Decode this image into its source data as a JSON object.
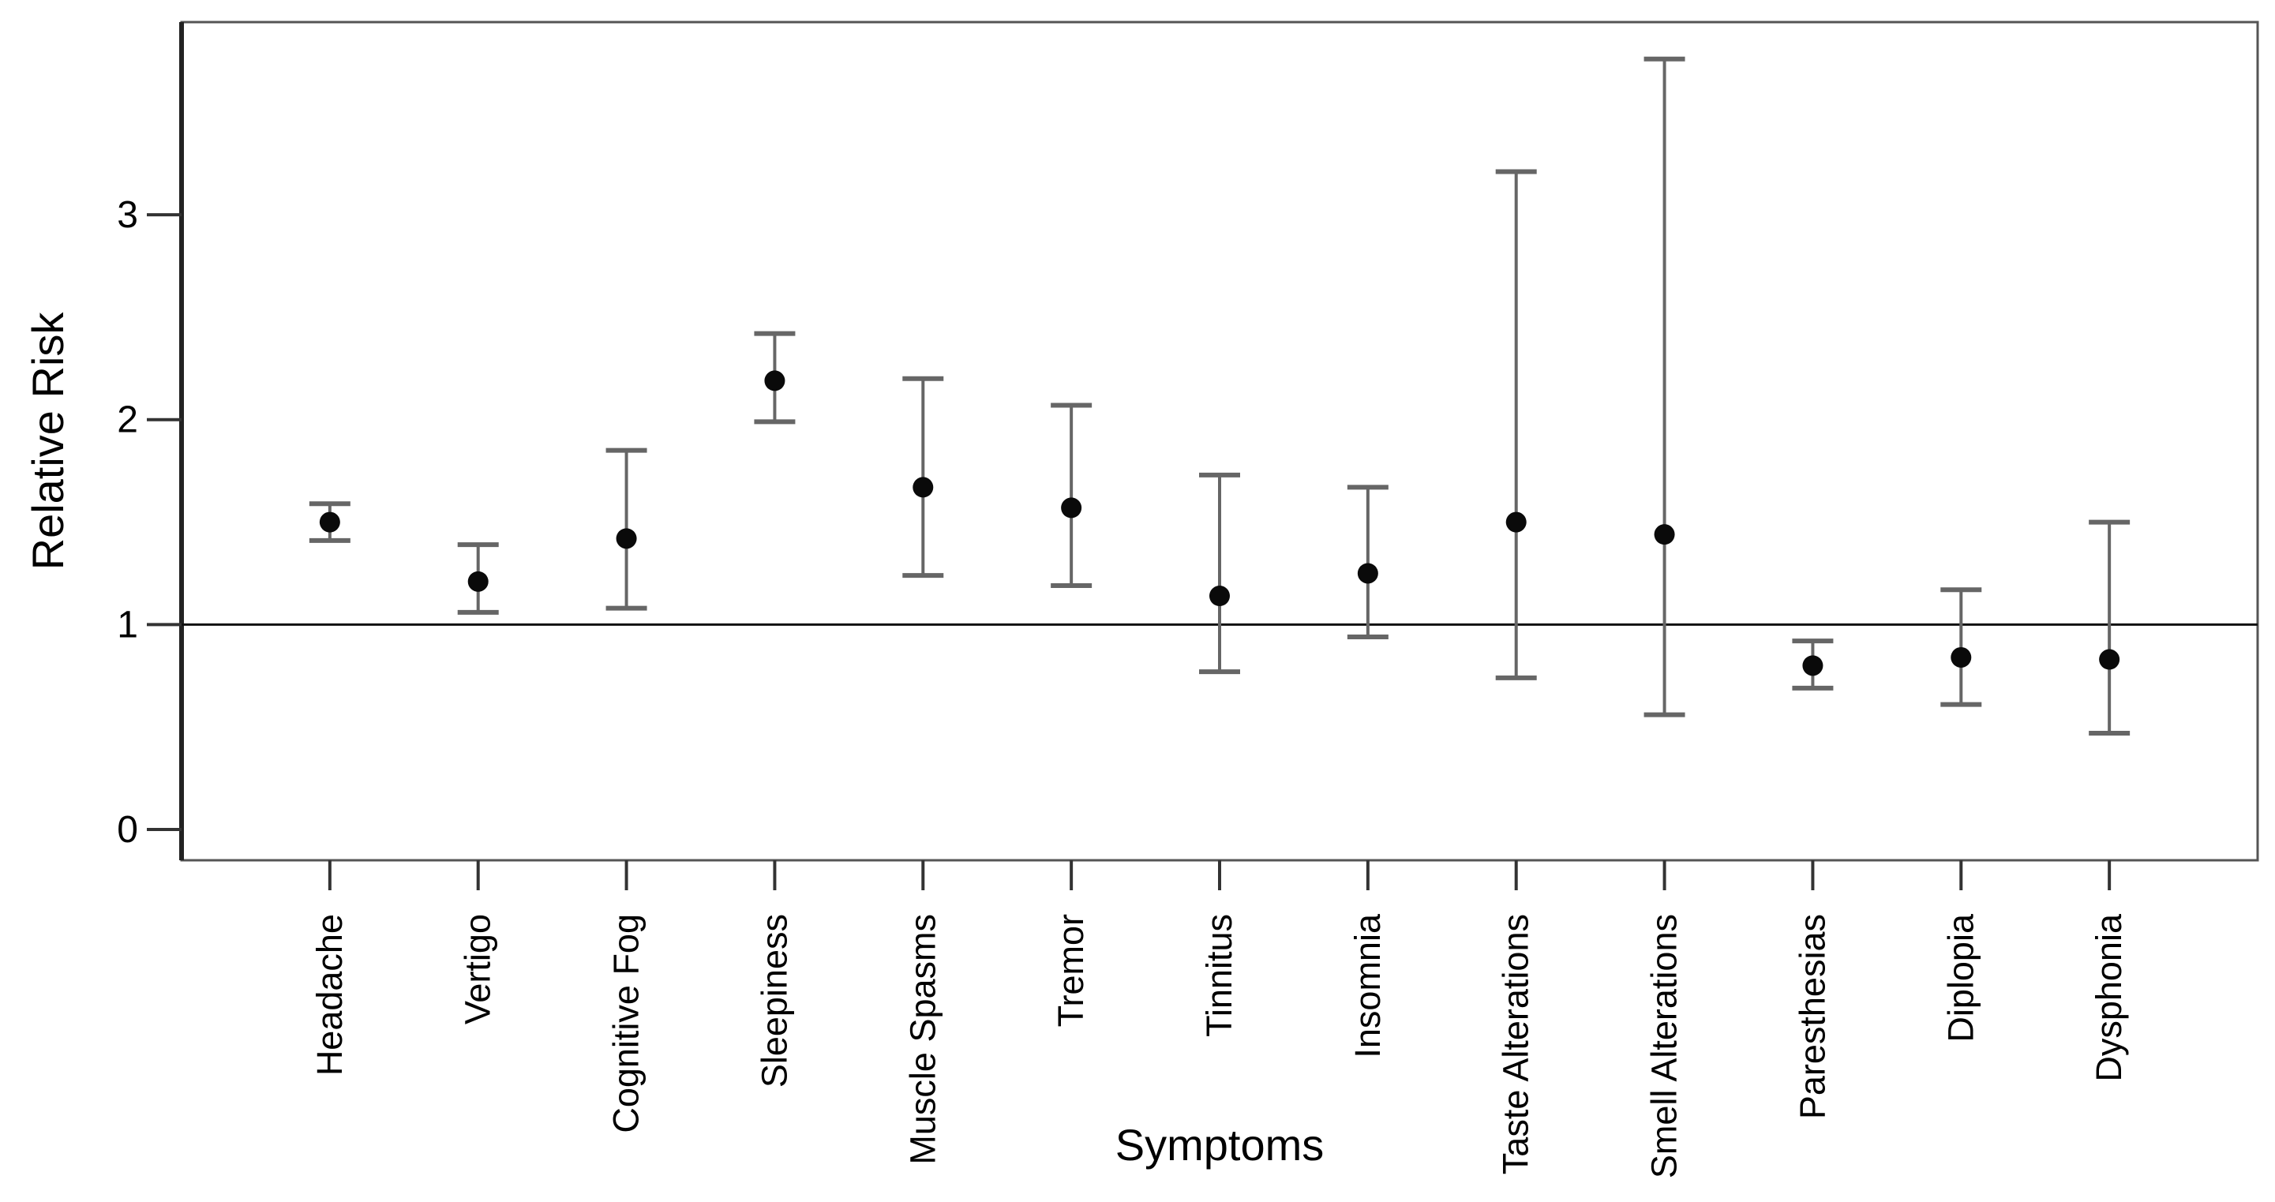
{
  "figure": {
    "background": "#ffffff",
    "description": "Forest-style error bar plot of relative risk per symptom"
  },
  "chart_data": {
    "type": "scatter",
    "subtype": "point-with-error-bars",
    "title": "",
    "xlabel": "Symptoms",
    "ylabel": "Relative Risk",
    "categories": [
      "Headache",
      "Vertigo",
      "Cognitive Fog",
      "Sleepiness",
      "Muscle Spasms",
      "Tremor",
      "Tinnitus",
      "Insomnia",
      "Taste Alterations",
      "Smell Alterations",
      "Paresthesias",
      "Diplopia",
      "Dysphonia"
    ],
    "series": [
      {
        "name": "Relative Risk",
        "values": [
          1.5,
          1.21,
          1.42,
          2.19,
          1.67,
          1.57,
          1.14,
          1.25,
          1.5,
          1.44,
          0.8,
          0.84,
          0.83
        ],
        "ci_lower": [
          1.41,
          1.06,
          1.08,
          1.99,
          1.24,
          1.19,
          0.77,
          0.94,
          0.74,
          0.56,
          0.69,
          0.61,
          0.47
        ],
        "ci_upper": [
          1.59,
          1.39,
          1.85,
          2.42,
          2.2,
          2.07,
          1.73,
          1.67,
          3.21,
          3.76,
          0.92,
          1.17,
          1.5
        ]
      }
    ],
    "reference_line_y": 1,
    "yticks": [
      0,
      1,
      2,
      3
    ],
    "ytick_labels": [
      "0",
      "1",
      "2",
      "3"
    ],
    "ylim": [
      -0.15,
      3.94
    ],
    "grid": false,
    "legend": false,
    "colors": {
      "point": "#0a0a0a",
      "error_bar": "#666666",
      "reference_line": "#111111",
      "frame": "#555555",
      "y_axis": "#222222",
      "tick": "#333333",
      "text": "#000000"
    }
  }
}
